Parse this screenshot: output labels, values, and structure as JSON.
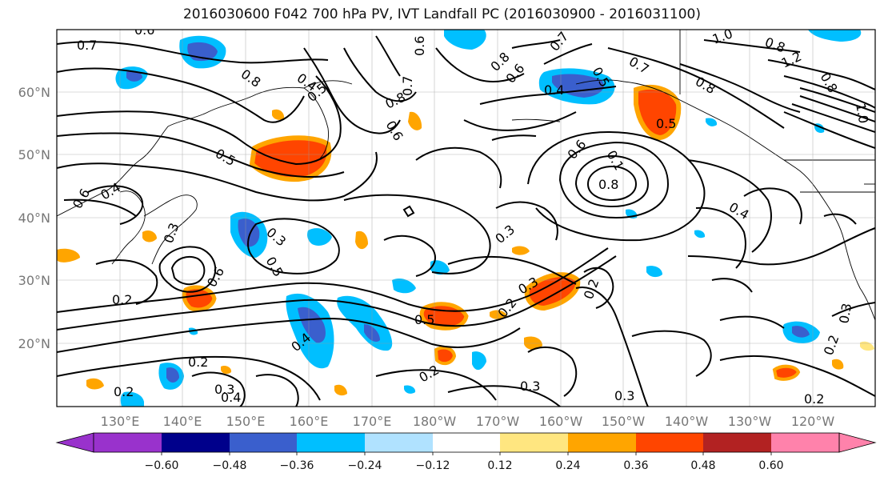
{
  "title": "2016030600 F042 700 hPa PV, IVT Landfall PC (2016030900 - 2016031100)",
  "map": {
    "lon_labels": [
      "130°E",
      "140°E",
      "150°E",
      "160°E",
      "170°E",
      "180°W",
      "170°W",
      "160°W",
      "150°W",
      "140°W",
      "130°W",
      "120°W"
    ],
    "lat_labels": [
      "60°N",
      "50°N",
      "40°N",
      "30°N",
      "20°N"
    ],
    "contour_labels": [
      {
        "text": "0.7"
      },
      {
        "text": "0.6"
      },
      {
        "text": "0.8"
      },
      {
        "text": "0.4"
      },
      {
        "text": "0.5"
      },
      {
        "text": "0.6"
      },
      {
        "text": "0.8"
      },
      {
        "text": "0.7"
      },
      {
        "text": "0.6"
      },
      {
        "text": "0.8"
      },
      {
        "text": "0.4"
      },
      {
        "text": "0.7"
      },
      {
        "text": "0.6"
      },
      {
        "text": "0.5"
      },
      {
        "text": "0.7"
      },
      {
        "text": "0.8"
      },
      {
        "text": "1.0"
      },
      {
        "text": "0.8"
      },
      {
        "text": "1.2"
      },
      {
        "text": "0.8"
      },
      {
        "text": "1.0"
      },
      {
        "text": "0.5"
      },
      {
        "text": "0.5"
      },
      {
        "text": "0.6"
      },
      {
        "text": "0.4"
      },
      {
        "text": "0.3"
      },
      {
        "text": "0.3"
      },
      {
        "text": "0.5"
      },
      {
        "text": "0.6"
      },
      {
        "text": "0.2"
      },
      {
        "text": "0.8"
      },
      {
        "text": "0.3"
      },
      {
        "text": "0.3"
      },
      {
        "text": "0.2"
      },
      {
        "text": "0.4"
      },
      {
        "text": "0.2"
      },
      {
        "text": "0.3"
      },
      {
        "text": "0.4"
      },
      {
        "text": "0.2"
      },
      {
        "text": "0.5"
      },
      {
        "text": "0.2"
      },
      {
        "text": "0.3"
      },
      {
        "text": "0.3"
      },
      {
        "text": "0.2"
      },
      {
        "text": "0.2"
      },
      {
        "text": "0.4"
      },
      {
        "text": "0.3"
      },
      {
        "text": "0.6"
      },
      {
        "text": "0.1"
      },
      {
        "text": "0.2"
      }
    ]
  },
  "colorbar": {
    "ticks": [
      "−0.60",
      "−0.48",
      "−0.36",
      "−0.24",
      "−0.12",
      "0.12",
      "0.24",
      "0.36",
      "0.48",
      "0.60"
    ],
    "colors": [
      "#9932cc",
      "#00008b",
      "#3a5fcd",
      "#00bfff",
      "#b0e2ff",
      "#ffffff",
      "#ffe680",
      "#ffa500",
      "#ff4500",
      "#b22222",
      "#ff82ab"
    ]
  }
}
